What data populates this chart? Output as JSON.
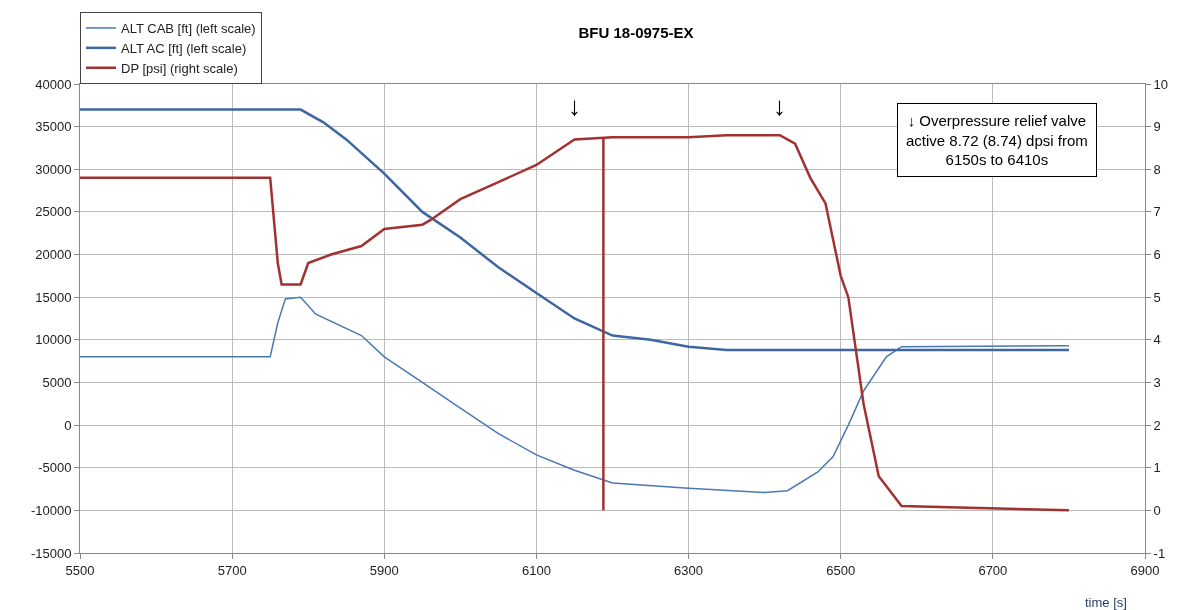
{
  "chart_data": {
    "type": "line",
    "title": "BFU 18-0975-EX",
    "xlabel": "time [s]",
    "xlim": [
      5500,
      6900
    ],
    "xticks": [
      5500,
      5700,
      5900,
      6100,
      6300,
      6500,
      6700,
      6900
    ],
    "ylim": [
      -15000,
      40000
    ],
    "yticks": [
      -15000,
      -10000,
      -5000,
      0,
      5000,
      10000,
      15000,
      20000,
      25000,
      30000,
      35000,
      40000
    ],
    "y2lim": [
      -1,
      10
    ],
    "y2ticks": [
      -1,
      0,
      1,
      2,
      3,
      4,
      5,
      6,
      7,
      8,
      9,
      10
    ],
    "grid": true,
    "legend": "top left",
    "marker": "none",
    "line_style": "solid",
    "series": [
      {
        "name": "ALT CAB [ft] (left scale)",
        "color": "#4a78b0",
        "x": [
          5500,
          5750,
          5760,
          5770,
          5790,
          5810,
          5870,
          5900,
          5950,
          6000,
          6050,
          6100,
          6150,
          6200,
          6300,
          6400,
          6430,
          6470,
          6490,
          6510,
          6530,
          6560,
          6580,
          6800
        ],
        "values": [
          8000,
          8000,
          12000,
          14800,
          15000,
          13000,
          10500,
          8000,
          5000,
          2000,
          -1000,
          -3500,
          -5300,
          -6800,
          -7400,
          -7900,
          -7700,
          -5500,
          -3700,
          0,
          4000,
          8000,
          9200,
          9300
        ]
      },
      {
        "name": "ALT AC [ft] (left scale)",
        "color": "#3d66a3",
        "x": [
          5500,
          5790,
          5820,
          5850,
          5900,
          5950,
          6000,
          6050,
          6100,
          6150,
          6200,
          6250,
          6300,
          6350,
          6800
        ],
        "values": [
          37000,
          37000,
          35500,
          33500,
          29500,
          25000,
          22000,
          18500,
          15500,
          12500,
          10500,
          10000,
          9200,
          8800,
          8800
        ]
      },
      {
        "name": "DP [psi] (right scale)",
        "color": "#a23232",
        "axis": "y2",
        "x": [
          5500,
          5750,
          5760,
          5765,
          5790,
          5800,
          5830,
          5870,
          5900,
          5950,
          5960,
          6000,
          6050,
          6100,
          6150,
          6200,
          6300,
          6350,
          6420,
          6440,
          6460,
          6480,
          6500,
          6510,
          6530,
          6550,
          6580,
          6800
        ],
        "values": [
          7.8,
          7.8,
          5.8,
          5.3,
          5.3,
          5.8,
          6.0,
          6.2,
          6.6,
          6.7,
          6.8,
          7.3,
          7.7,
          8.1,
          8.7,
          8.75,
          8.75,
          8.8,
          8.8,
          8.6,
          7.8,
          7.2,
          5.5,
          5.0,
          2.5,
          0.8,
          0.1,
          0.0
        ]
      },
      {
        "color": "#a23232",
        "axis": "y2",
        "x": [
          6188,
          6188
        ],
        "values": [
          0,
          8.75
        ]
      }
    ],
    "annotations": [
      "↓",
      "↓",
      "↓ Overpressure relief valve active 8.72 (8.74) dpsi from 6150s to 6410s"
    ]
  }
}
